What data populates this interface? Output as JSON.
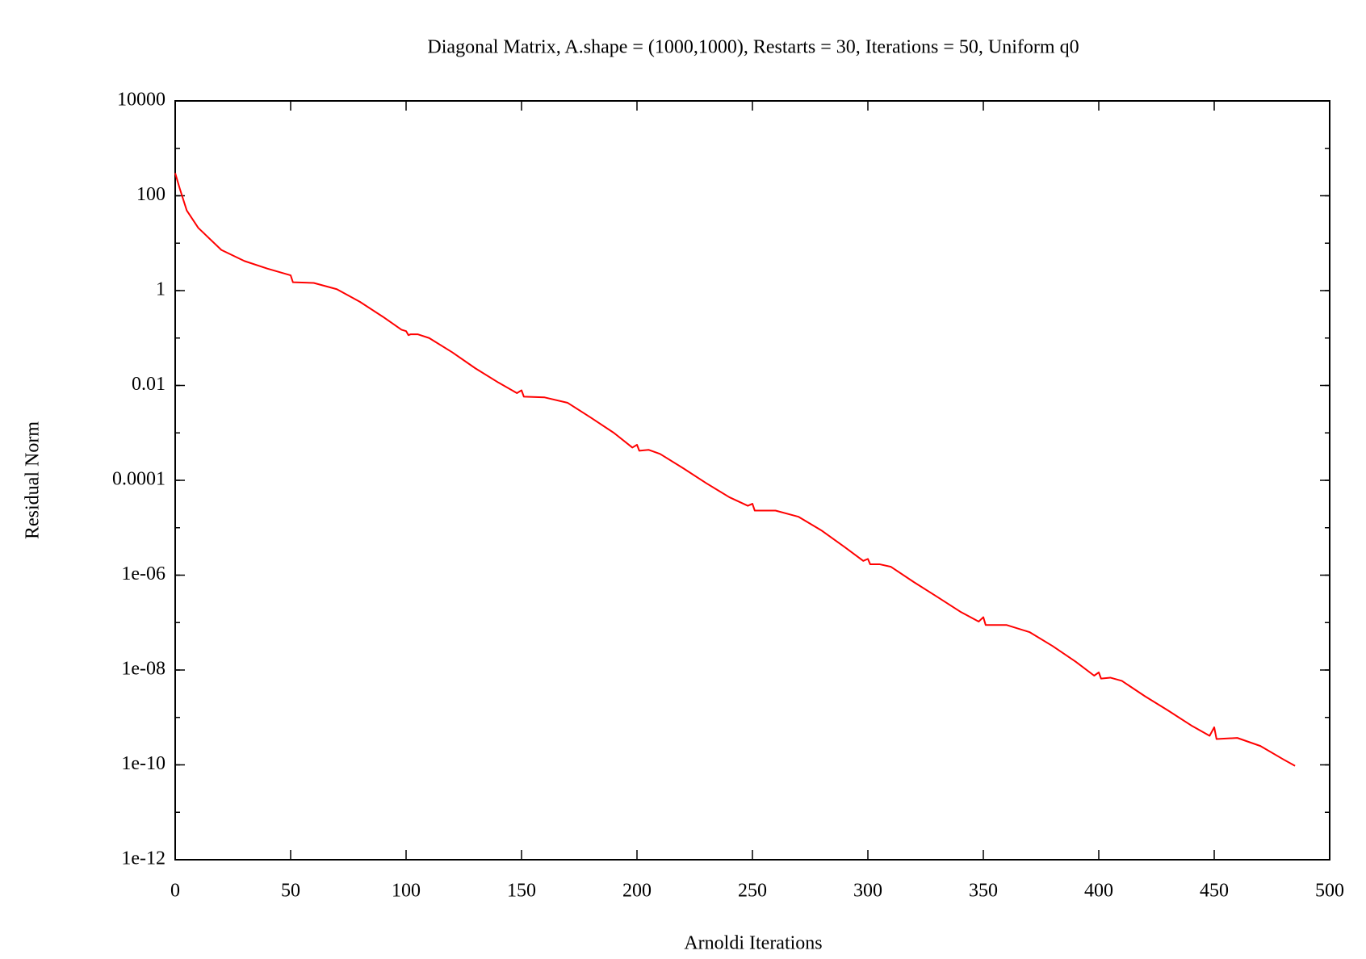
{
  "chart_data": {
    "type": "line",
    "title": "Diagonal Matrix, A.shape = (1000,1000), Restarts = 30, Iterations = 50, Uniform q0",
    "x_label": "Arnoldi Iterations",
    "y_label": "Residual Norm",
    "log_y": true,
    "grid": false,
    "color": "#ff0000",
    "x": [
      0,
      2,
      5,
      10,
      20,
      30,
      40,
      50,
      51,
      60,
      70,
      80,
      90,
      98,
      100,
      101,
      102,
      105,
      110,
      120,
      130,
      140,
      148,
      150,
      151,
      160,
      170,
      180,
      190,
      198,
      200,
      201,
      205,
      210,
      220,
      230,
      240,
      248,
      250,
      251,
      260,
      270,
      280,
      290,
      298,
      300,
      301,
      305,
      310,
      320,
      330,
      340,
      348,
      350,
      351,
      360,
      370,
      380,
      390,
      398,
      400,
      401,
      405,
      410,
      420,
      430,
      440,
      448,
      450,
      451,
      460,
      470,
      480,
      485
    ],
    "values": [
      300,
      141,
      49,
      21,
      7.2,
      4.2,
      2.9,
      2.1,
      1.5,
      1.45,
      1.07,
      0.58,
      0.28,
      0.15,
      0.14,
      0.115,
      0.12,
      0.12,
      0.1,
      0.05,
      0.023,
      0.0115,
      0.0069,
      0.0079,
      0.0058,
      0.0056,
      0.0043,
      0.0021,
      0.001,
      0.00049,
      0.00056,
      0.00042,
      0.00044,
      0.00036,
      0.00018,
      8.7e-05,
      4.4e-05,
      2.9e-05,
      3.2e-05,
      2.3e-05,
      2.3e-05,
      1.7e-05,
      8.7e-06,
      3.9e-06,
      2e-06,
      2.2e-06,
      1.7e-06,
      1.7e-06,
      1.5e-06,
      7.1e-07,
      3.5e-07,
      1.7e-07,
      1.05e-07,
      1.3e-07,
      8.9e-08,
      8.9e-08,
      6.3e-08,
      3.2e-08,
      1.5e-08,
      7.6e-09,
      8.9e-09,
      6.6e-09,
      6.9e-09,
      5.9e-09,
      2.8e-09,
      1.4e-09,
      6.8e-10,
      4.1e-10,
      6.2e-10,
      3.5e-10,
      3.7e-10,
      2.5e-10,
      1.3e-10,
      9.5e-11
    ],
    "xlim": [
      0,
      500
    ],
    "xticks": [
      0,
      50,
      100,
      150,
      200,
      250,
      300,
      350,
      400,
      450,
      500
    ],
    "ylim": [
      1e-12,
      10000
    ],
    "yticks": [
      {
        "value": 1e-12,
        "label": "1e-12"
      },
      {
        "value": 1e-10,
        "label": "1e-10"
      },
      {
        "value": 1e-08,
        "label": "1e-08"
      },
      {
        "value": 1e-06,
        "label": "1e-06"
      },
      0.0001,
      0.01,
      1,
      100,
      10000
    ]
  }
}
